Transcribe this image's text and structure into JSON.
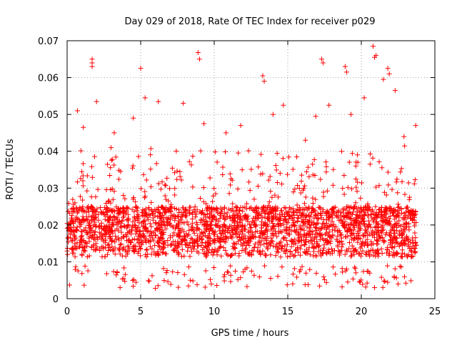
{
  "chart_data": {
    "type": "scatter",
    "title": "Day 029 of 2018, Rate Of TEC Index for receiver p029",
    "xlabel": "GPS time / hours",
    "ylabel": "ROTI / TECUs",
    "xlim": [
      0,
      25
    ],
    "ylim": [
      0,
      0.07
    ],
    "xticks": [
      0,
      5,
      10,
      15,
      20,
      25
    ],
    "yticks": [
      0,
      0.01,
      0.02,
      0.03,
      0.04,
      0.05,
      0.06,
      0.07
    ],
    "ytick_labels": [
      "0",
      "0.01",
      "0.02",
      "0.03",
      "0.04",
      "0.05",
      "0.06",
      "0.07"
    ],
    "grid": true,
    "marker": "+",
    "colors": {
      "series": "#ff0000",
      "grid": "#a0a0a0",
      "axis": "#000000"
    },
    "series": [
      {
        "x_range": [
          0,
          23.75
        ],
        "y_typical_range": [
          0.005,
          0.03
        ],
        "point_density": "dense, roughly continuous every ~30 s across all satellites",
        "notable_points": [
          [
            1.7,
            0.065
          ],
          [
            1.7,
            0.064
          ],
          [
            1.7,
            0.063
          ],
          [
            5.0,
            0.0625
          ],
          [
            8.9,
            0.0668
          ],
          [
            9.0,
            0.065
          ],
          [
            13.3,
            0.0605
          ],
          [
            13.4,
            0.059
          ],
          [
            17.3,
            0.065
          ],
          [
            17.4,
            0.064
          ],
          [
            18.9,
            0.063
          ],
          [
            19.0,
            0.0615
          ],
          [
            20.8,
            0.0685
          ],
          [
            21.0,
            0.066
          ],
          [
            20.9,
            0.0655
          ],
          [
            21.8,
            0.0625
          ],
          [
            21.9,
            0.061
          ],
          [
            21.5,
            0.0595
          ],
          [
            0.7,
            0.051
          ],
          [
            1.1,
            0.0465
          ],
          [
            2.0,
            0.0535
          ],
          [
            3.2,
            0.045
          ],
          [
            4.5,
            0.049
          ],
          [
            5.3,
            0.0545
          ],
          [
            6.2,
            0.0535
          ],
          [
            7.9,
            0.053
          ],
          [
            9.3,
            0.0475
          ],
          [
            10.8,
            0.045
          ],
          [
            11.8,
            0.047
          ],
          [
            14.0,
            0.05
          ],
          [
            14.7,
            0.0525
          ],
          [
            16.2,
            0.043
          ],
          [
            16.9,
            0.0495
          ],
          [
            17.8,
            0.0525
          ],
          [
            19.3,
            0.05
          ],
          [
            20.2,
            0.0545
          ],
          [
            22.3,
            0.0565
          ],
          [
            22.9,
            0.044
          ],
          [
            23.7,
            0.047
          ],
          [
            3.6,
            0.003
          ],
          [
            6.0,
            0.0028
          ],
          [
            9.8,
            0.004
          ],
          [
            20.9,
            0.003
          ],
          [
            22.5,
            0.004
          ]
        ]
      }
    ]
  }
}
